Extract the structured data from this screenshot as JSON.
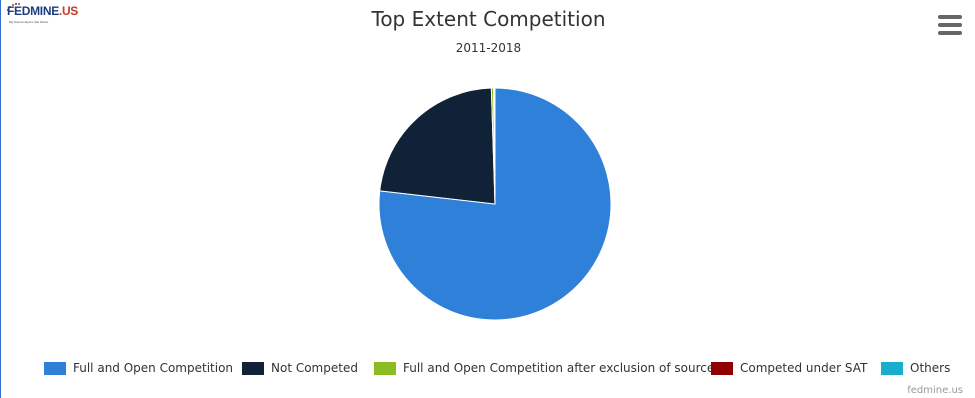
{
  "logo": {
    "text_main": "FEDMINE",
    "text_accent": ".US",
    "tagline": "Big Data Analytics that Works"
  },
  "menu": {
    "icon": "hamburger-menu-icon"
  },
  "credit": "fedmine.us",
  "chart_data": {
    "type": "pie",
    "title": "Top Extent Competition",
    "subtitle": "2011-2018",
    "slices": [
      {
        "name": "Full and Open Competition",
        "value": 76.8,
        "color": "#2f80d8"
      },
      {
        "name": "Not Competed",
        "value": 22.7,
        "color": "#0f2238"
      },
      {
        "name": "Full and Open Competition after exclusion of sources",
        "value": 0.3,
        "color": "#8bbc21"
      },
      {
        "name": "Competed under SAT",
        "value": 0.1,
        "color": "#910000"
      },
      {
        "name": "Others",
        "value": 0.1,
        "color": "#1aadce"
      }
    ],
    "legend_position": "bottom"
  }
}
